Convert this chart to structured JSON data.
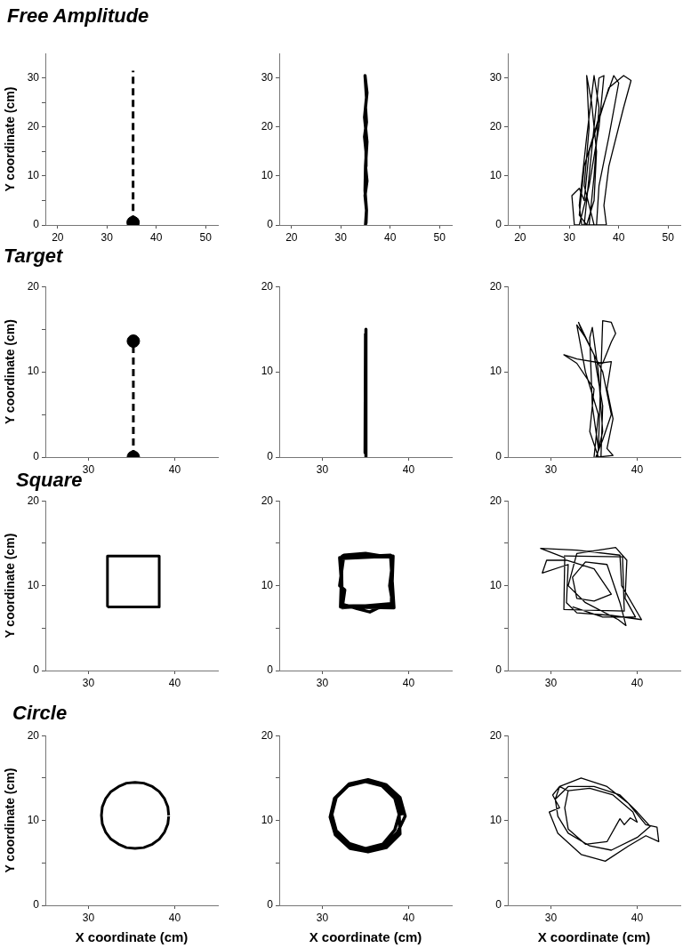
{
  "chart_data": [
    {
      "type": "line",
      "title": "Free Amplitude",
      "ylabel": "Y coordinate (cm)",
      "marker": "none",
      "xlim": [
        17.5,
        52.5
      ],
      "xticks": [
        20,
        30,
        40,
        50
      ],
      "ylim": [
        0,
        35
      ],
      "yticks": [
        0,
        {
          "value": 5,
          "label": null
        },
        10,
        {
          "value": 15,
          "label": null
        },
        20,
        {
          "value": 25,
          "label": null
        },
        30
      ],
      "series": [
        {
          "color": "#000000",
          "line_style": "dashed",
          "x": [
            35.3,
            35.3
          ],
          "values": [
            0.5,
            31.5
          ]
        },
        {
          "type": "scatter",
          "marker": "circle",
          "color": "#000000",
          "x": [
            35.3
          ],
          "values": [
            0.5
          ]
        }
      ]
    },
    {
      "type": "line",
      "marker": "none",
      "xlim": [
        17.5,
        52.5
      ],
      "xticks": [
        20,
        30,
        40,
        50
      ],
      "ylim": [
        0,
        35
      ],
      "yticks": [
        0,
        10,
        20,
        30
      ],
      "series": [
        {
          "color": "#000000",
          "x": [
            35,
            35.2,
            34.9,
            35.3,
            35,
            35.1,
            34.8,
            35.2,
            35,
            35.3,
            34.9,
            35.2,
            34.8,
            35.3,
            35,
            34.9,
            35.2,
            35.1
          ],
          "values": [
            0,
            3,
            6,
            9,
            12,
            15,
            18,
            21,
            24,
            27,
            30.5,
            26,
            22,
            17,
            12,
            7,
            3,
            0.3
          ]
        }
      ]
    },
    {
      "type": "line",
      "marker": "none",
      "xlim": [
        17.5,
        52.5
      ],
      "xticks": [
        20,
        30,
        40,
        50
      ],
      "ylim": [
        0,
        35
      ],
      "yticks": [
        0,
        10,
        20,
        30
      ],
      "series": [
        {
          "color": "#000000",
          "x": [
            33,
            34,
            35,
            36,
            37,
            36,
            34,
            32,
            31,
            30.5,
            32,
            33,
            34,
            38,
            41,
            42.5,
            41,
            38,
            37,
            37.5,
            35,
            33,
            34,
            33.5,
            34.5,
            35.5,
            35,
            33.5,
            32,
            33,
            36,
            39,
            40,
            38,
            36,
            35.5,
            32.5,
            32,
            33.5,
            35,
            36,
            35,
            34
          ],
          "values": [
            0,
            10,
            20,
            30,
            30.5,
            20,
            8,
            0,
            0,
            6,
            7.5,
            5,
            15,
            28,
            30.5,
            29.5,
            24,
            12,
            4,
            0,
            0,
            8,
            20,
            30.5,
            25,
            15,
            5,
            0,
            2,
            12,
            22,
            30.5,
            29,
            18,
            8,
            0,
            0,
            4,
            18,
            30.5,
            24,
            10,
            0
          ]
        }
      ]
    },
    {
      "type": "line",
      "title": "Target",
      "ylabel": "Y coordinate (cm)",
      "marker": "none",
      "xlim": [
        25,
        45
      ],
      "xticks": [
        30,
        40
      ],
      "ylim": [
        0,
        20
      ],
      "yticks": [
        0,
        {
          "value": 5,
          "label": null
        },
        10,
        {
          "value": 15,
          "label": null
        },
        20
      ],
      "series": [
        {
          "color": "#000000",
          "line_style": "dashed",
          "x": [
            35.2,
            35.2
          ],
          "values": [
            0,
            13.6
          ]
        },
        {
          "type": "scatter",
          "marker": "circle",
          "color": "#000000",
          "x": [
            35.2,
            35.2
          ],
          "values": [
            0,
            13.6
          ]
        }
      ]
    },
    {
      "type": "line",
      "marker": "none",
      "xlim": [
        25,
        45
      ],
      "xticks": [
        30,
        40
      ],
      "ylim": [
        0,
        20
      ],
      "yticks": [
        0,
        10,
        20
      ],
      "series": [
        {
          "color": "#000000",
          "x": [
            35,
            35.05,
            34.95,
            35
          ],
          "values": [
            0,
            15,
            0.5,
            14.5
          ]
        }
      ]
    },
    {
      "type": "line",
      "marker": "none",
      "xlim": [
        25,
        45
      ],
      "xticks": [
        30,
        40
      ],
      "ylim": [
        0,
        20
      ],
      "yticks": [
        0,
        10,
        20
      ],
      "series": [
        {
          "color": "#000000",
          "x": [
            35,
            35.5,
            34,
            33,
            34,
            36,
            37,
            36,
            35.2,
            35.8,
            36,
            35,
            33.2,
            33.5,
            35.5,
            37,
            36.5,
            37.2,
            36.5,
            37.2,
            35.5,
            34.5,
            35,
            33,
            31.5,
            33,
            36,
            37,
            37.5,
            37,
            36,
            35.5,
            34.8,
            34.5,
            34.8,
            35.5,
            36,
            35.3
          ],
          "values": [
            0,
            5,
            10,
            15.5,
            14,
            10,
            5,
            2,
            0,
            0,
            6,
            12,
            15.8,
            15,
            11,
            11.2,
            8,
            4.5,
            1,
            0.2,
            0,
            3,
            8,
            11,
            12,
            11.5,
            11,
            13.5,
            14.5,
            15.8,
            16,
            1,
            6,
            14,
            15.2,
            10,
            3,
            0
          ]
        }
      ]
    },
    {
      "type": "line",
      "title": "Square",
      "ylabel": "Y coordinate (cm)",
      "marker": "none",
      "xlim": [
        25,
        45
      ],
      "xticks": [
        30,
        40
      ],
      "ylim": [
        0,
        20
      ],
      "yticks": [
        0,
        {
          "value": 5,
          "label": null
        },
        10,
        {
          "value": 15,
          "label": null
        },
        20
      ],
      "series": [
        {
          "color": "#000000",
          "x": [
            32.2,
            38.2,
            38.2,
            32.2,
            32.2
          ],
          "values": [
            7.5,
            7.5,
            13.5,
            13.5,
            7.6
          ]
        }
      ]
    },
    {
      "type": "line",
      "marker": "none",
      "xlim": [
        25,
        45
      ],
      "xticks": [
        30,
        40
      ],
      "ylim": [
        0,
        20
      ],
      "yticks": [
        0,
        {
          "value": 5,
          "label": null
        },
        10,
        {
          "value": 15,
          "label": null
        },
        20
      ],
      "series": [
        {
          "color": "#000000",
          "x": [
            32.2,
            38,
            38.1,
            32.3,
            32.1,
            38.3,
            37.9,
            32,
            32.4,
            34,
            35.5,
            36.5,
            38.2,
            37.8,
            38.2,
            35,
            32.5,
            32,
            32.6,
            32.3,
            38,
            38.2,
            32.2,
            32.3
          ],
          "values": [
            7.6,
            7.7,
            13.4,
            13.5,
            7.5,
            7.4,
            13.6,
            13.3,
            7.8,
            7.3,
            6.9,
            7.4,
            7.6,
            10,
            13.3,
            13.8,
            13.6,
            10,
            9.5,
            7.4,
            7.9,
            13.5,
            13.2,
            7.7
          ]
        }
      ]
    },
    {
      "type": "line",
      "marker": "none",
      "xlim": [
        25,
        45
      ],
      "xticks": [
        30,
        40
      ],
      "ylim": [
        0,
        20
      ],
      "yticks": [
        0,
        {
          "value": 5,
          "label": null
        },
        10,
        {
          "value": 15,
          "label": null
        },
        20
      ],
      "series": [
        {
          "color": "#000000",
          "x": [
            31.5,
            38.3,
            38.5,
            31.5,
            31.6,
            28.8,
            33,
            38,
            38.2,
            40.5,
            37,
            33,
            31.8,
            32,
            29,
            29.5,
            31.8,
            35,
            37,
            35,
            33,
            32.5,
            34,
            36.5,
            38,
            38.7,
            37.8,
            34,
            32,
            33,
            37.5,
            38.8,
            38.6,
            39.8,
            36,
            32.5
          ],
          "values": [
            13.5,
            13.4,
            7,
            7.2,
            13.3,
            14.4,
            14.2,
            13.6,
            10,
            6,
            6.5,
            6.8,
            8,
            12.5,
            11.5,
            13,
            13,
            12,
            9,
            8.2,
            8.5,
            11,
            12.8,
            12.5,
            8,
            5.3,
            6,
            8,
            10,
            13.8,
            14.5,
            13,
            8.5,
            6.3,
            6.3,
            7.5
          ]
        }
      ]
    },
    {
      "type": "line",
      "title": "Circle",
      "ylabel": "Y coordinate (cm)",
      "xlabel": "X coordinate (cm)",
      "marker": "none",
      "xlim": [
        25,
        45
      ],
      "xticks": [
        30,
        40
      ],
      "ylim": [
        0,
        20
      ],
      "yticks": [
        0,
        {
          "value": 5,
          "label": null
        },
        10,
        {
          "value": 15,
          "label": null
        },
        20
      ],
      "series": [
        {
          "color": "#000000",
          "x": [
            39.3,
            39.2,
            38.8,
            38.2,
            37.4,
            36.4,
            35.4,
            34.4,
            33.5,
            32.6,
            32,
            31.6,
            31.5,
            31.6,
            32,
            32.6,
            33.5,
            34.4,
            35.4,
            36.4,
            37.4,
            38.2,
            38.8,
            39.2,
            39.3
          ],
          "values": [
            10.6,
            11.6,
            12.6,
            13.4,
            14,
            14.4,
            14.5,
            14.4,
            14,
            13.4,
            12.6,
            11.6,
            10.6,
            9.6,
            8.6,
            7.8,
            7.2,
            6.8,
            6.7,
            6.8,
            7.2,
            7.8,
            8.6,
            9.6,
            10.5
          ]
        }
      ]
    },
    {
      "type": "line",
      "xlabel": "X coordinate (cm)",
      "marker": "none",
      "xlim": [
        25,
        45
      ],
      "xticks": [
        30,
        40
      ],
      "ylim": [
        0,
        20
      ],
      "yticks": [
        0,
        {
          "value": 5,
          "label": null
        },
        10,
        {
          "value": 15,
          "label": null
        },
        20
      ],
      "series": [
        {
          "color": "#000000",
          "x": [
            39.2,
            38.7,
            37.2,
            35.1,
            33.1,
            31.6,
            31,
            31.6,
            33.1,
            35.1,
            37.2,
            38.7,
            39.6,
            39,
            37.4,
            35.3,
            33.1,
            31.4,
            30.9,
            31.5,
            33.2,
            35.3,
            37.4,
            39,
            38.9,
            38.4,
            36.9,
            35,
            33,
            31.6,
            31.1,
            31.6,
            33.1,
            35,
            37,
            38.4,
            38.9
          ],
          "values": [
            10.6,
            12.7,
            14.2,
            14.7,
            14.2,
            12.7,
            10.6,
            8.6,
            7.1,
            6.5,
            7.1,
            8.6,
            10.5,
            12.7,
            14.2,
            14.8,
            14.3,
            12.6,
            10.4,
            8.3,
            6.7,
            6.3,
            6.8,
            8.4,
            10.7,
            12.6,
            14.1,
            14.6,
            14.1,
            12.7,
            10.7,
            8.8,
            7.3,
            6.7,
            7.2,
            8.9,
            10.7
          ]
        }
      ]
    },
    {
      "type": "line",
      "xlabel": "X coordinate (cm)",
      "marker": "none",
      "xlim": [
        25,
        45
      ],
      "xticks": [
        30,
        40
      ],
      "ylim": [
        0,
        20
      ],
      "yticks": [
        0,
        {
          "value": 5,
          "label": null
        },
        10,
        {
          "value": 15,
          "label": null
        },
        20
      ],
      "series": [
        {
          "color": "#000000",
          "x": [
            30.5,
            32,
            35,
            38,
            40,
            41.5,
            40,
            37,
            34.5,
            32,
            30.8,
            30.5,
            31,
            33.5,
            36.5,
            39,
            41,
            42.3,
            42.5,
            41,
            39,
            36.3,
            33.5,
            30.8,
            29.8,
            31,
            30.2,
            31,
            32,
            34.5,
            37.2,
            39.5,
            40,
            39.2,
            38.5,
            38,
            36.5,
            34,
            32,
            31.6,
            32
          ],
          "values": [
            12.5,
            14,
            14,
            13,
            11,
            9.3,
            8,
            6.5,
            7,
            8.5,
            10.5,
            12.5,
            14,
            15,
            14,
            12,
            9.5,
            9.2,
            7.5,
            8.2,
            7,
            5.2,
            6,
            8.5,
            11,
            11.5,
            13,
            14,
            13.5,
            13.8,
            13,
            11,
            9.8,
            10.3,
            9.5,
            10.2,
            7.5,
            7.2,
            9,
            11.5,
            13.5
          ]
        }
      ]
    }
  ]
}
